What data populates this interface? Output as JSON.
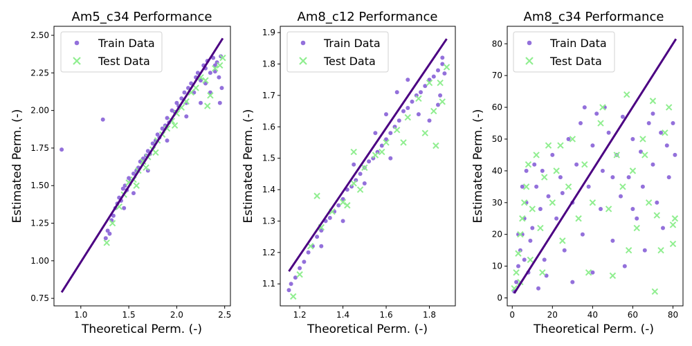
{
  "colors": {
    "train": "#9370DB",
    "test": "#90EE90",
    "fit_line": "#4B0082",
    "axes": "#000000",
    "legend_border": "#CCCCCC"
  },
  "legend": {
    "train_label": "Train Data",
    "test_label": "Test Data",
    "placement": "upper-left"
  },
  "chart_data": [
    {
      "type": "scatter",
      "title": "Am5_c34 Performance",
      "xlabel": "Theoretical Perm. (-)",
      "ylabel": "Estimated Perm. (-)",
      "xlim": [
        0.72,
        2.56
      ],
      "ylim": [
        0.7,
        2.56
      ],
      "xticks": [
        1.0,
        1.5,
        2.0,
        2.5
      ],
      "xtick_labels": [
        "1.0",
        "1.5",
        "2.0",
        "2.5"
      ],
      "yticks": [
        0.75,
        1.0,
        1.25,
        1.5,
        1.75,
        2.0,
        2.25,
        2.5
      ],
      "ytick_labels": [
        "0.75",
        "1.00",
        "1.25",
        "1.50",
        "1.75",
        "2.00",
        "2.25",
        "2.50"
      ],
      "fit_line": {
        "x": [
          0.8,
          2.48
        ],
        "y": [
          0.79,
          2.48
        ]
      },
      "train": [
        [
          0.8,
          1.74
        ],
        [
          1.23,
          1.94
        ],
        [
          1.26,
          1.15
        ],
        [
          1.28,
          1.2
        ],
        [
          1.3,
          1.18
        ],
        [
          1.32,
          1.27
        ],
        [
          1.34,
          1.3
        ],
        [
          1.36,
          1.35
        ],
        [
          1.38,
          1.38
        ],
        [
          1.4,
          1.42
        ],
        [
          1.42,
          1.4
        ],
        [
          1.44,
          1.48
        ],
        [
          1.46,
          1.5
        ],
        [
          1.48,
          1.47
        ],
        [
          1.5,
          1.55
        ],
        [
          1.52,
          1.53
        ],
        [
          1.55,
          1.58
        ],
        [
          1.58,
          1.6
        ],
        [
          1.6,
          1.62
        ],
        [
          1.62,
          1.66
        ],
        [
          1.65,
          1.68
        ],
        [
          1.68,
          1.7
        ],
        [
          1.7,
          1.73
        ],
        [
          1.72,
          1.71
        ],
        [
          1.75,
          1.78
        ],
        [
          1.78,
          1.8
        ],
        [
          1.8,
          1.84
        ],
        [
          1.82,
          1.82
        ],
        [
          1.85,
          1.88
        ],
        [
          1.88,
          1.9
        ],
        [
          1.9,
          1.95
        ],
        [
          1.92,
          1.92
        ],
        [
          1.95,
          2.0
        ],
        [
          1.98,
          1.99
        ],
        [
          2.0,
          2.05
        ],
        [
          2.02,
          2.03
        ],
        [
          2.05,
          2.08
        ],
        [
          2.08,
          2.12
        ],
        [
          2.1,
          2.05
        ],
        [
          2.12,
          2.15
        ],
        [
          2.15,
          2.18
        ],
        [
          2.18,
          2.12
        ],
        [
          2.2,
          2.22
        ],
        [
          2.22,
          2.25
        ],
        [
          2.25,
          2.2
        ],
        [
          2.28,
          2.3
        ],
        [
          2.3,
          2.28
        ],
        [
          2.32,
          2.33
        ],
        [
          2.35,
          2.25
        ],
        [
          2.38,
          2.35
        ],
        [
          2.4,
          2.3
        ],
        [
          2.42,
          2.32
        ],
        [
          2.44,
          2.22
        ],
        [
          2.46,
          2.36
        ],
        [
          2.47,
          2.15
        ],
        [
          1.7,
          1.6
        ],
        [
          1.9,
          1.8
        ],
        [
          2.1,
          1.96
        ],
        [
          2.25,
          2.05
        ],
        [
          2.35,
          2.12
        ],
        [
          1.55,
          1.45
        ],
        [
          1.45,
          1.35
        ],
        [
          2.3,
          2.18
        ],
        [
          2.4,
          2.26
        ],
        [
          2.45,
          2.05
        ]
      ],
      "test": [
        [
          1.27,
          1.12
        ],
        [
          1.33,
          1.25
        ],
        [
          1.4,
          1.36
        ],
        [
          1.45,
          1.44
        ],
        [
          1.5,
          1.52
        ],
        [
          1.55,
          1.54
        ],
        [
          1.6,
          1.6
        ],
        [
          1.65,
          1.66
        ],
        [
          1.7,
          1.69
        ],
        [
          1.75,
          1.74
        ],
        [
          1.8,
          1.8
        ],
        [
          1.85,
          1.84
        ],
        [
          1.9,
          1.88
        ],
        [
          1.95,
          1.93
        ],
        [
          2.0,
          1.98
        ],
        [
          2.05,
          2.02
        ],
        [
          2.1,
          2.06
        ],
        [
          2.15,
          2.12
        ],
        [
          2.2,
          2.15
        ],
        [
          2.25,
          2.22
        ],
        [
          2.3,
          2.2
        ],
        [
          2.35,
          2.1
        ],
        [
          2.4,
          2.28
        ],
        [
          2.45,
          2.3
        ],
        [
          2.48,
          2.35
        ],
        [
          2.32,
          2.03
        ],
        [
          1.58,
          1.5
        ],
        [
          1.68,
          1.62
        ],
        [
          1.78,
          1.72
        ],
        [
          1.98,
          1.9
        ]
      ]
    },
    {
      "type": "scatter",
      "title": "Am8_c12 Performance",
      "xlabel": "Theoretical Perm. (-)",
      "ylabel": "Estimated Perm. (-)",
      "xlim": [
        1.11,
        1.92
      ],
      "ylim": [
        1.03,
        1.92
      ],
      "xticks": [
        1.2,
        1.4,
        1.6,
        1.8
      ],
      "xtick_labels": [
        "1.2",
        "1.4",
        "1.6",
        "1.8"
      ],
      "yticks": [
        1.1,
        1.2,
        1.3,
        1.4,
        1.5,
        1.6,
        1.7,
        1.8,
        1.9
      ],
      "ytick_labels": [
        "1.1",
        "1.2",
        "1.3",
        "1.4",
        "1.5",
        "1.6",
        "1.7",
        "1.8",
        "1.9"
      ],
      "fit_line": {
        "x": [
          1.15,
          1.88
        ],
        "y": [
          1.14,
          1.88
        ]
      },
      "train": [
        [
          1.15,
          1.08
        ],
        [
          1.16,
          1.1
        ],
        [
          1.18,
          1.12
        ],
        [
          1.2,
          1.15
        ],
        [
          1.22,
          1.17
        ],
        [
          1.24,
          1.2
        ],
        [
          1.26,
          1.22
        ],
        [
          1.28,
          1.25
        ],
        [
          1.3,
          1.27
        ],
        [
          1.32,
          1.3
        ],
        [
          1.34,
          1.31
        ],
        [
          1.36,
          1.33
        ],
        [
          1.38,
          1.35
        ],
        [
          1.4,
          1.37
        ],
        [
          1.42,
          1.4
        ],
        [
          1.44,
          1.41
        ],
        [
          1.46,
          1.43
        ],
        [
          1.48,
          1.45
        ],
        [
          1.5,
          1.47
        ],
        [
          1.52,
          1.49
        ],
        [
          1.54,
          1.5
        ],
        [
          1.56,
          1.52
        ],
        [
          1.58,
          1.54
        ],
        [
          1.6,
          1.56
        ],
        [
          1.62,
          1.58
        ],
        [
          1.64,
          1.6
        ],
        [
          1.66,
          1.62
        ],
        [
          1.68,
          1.65
        ],
        [
          1.7,
          1.66
        ],
        [
          1.72,
          1.68
        ],
        [
          1.74,
          1.7
        ],
        [
          1.76,
          1.71
        ],
        [
          1.78,
          1.73
        ],
        [
          1.8,
          1.75
        ],
        [
          1.82,
          1.76
        ],
        [
          1.84,
          1.78
        ],
        [
          1.86,
          1.8
        ],
        [
          1.87,
          1.77
        ],
        [
          1.65,
          1.71
        ],
        [
          1.7,
          1.75
        ],
        [
          1.6,
          1.64
        ],
        [
          1.55,
          1.58
        ],
        [
          1.45,
          1.48
        ],
        [
          1.5,
          1.42
        ],
        [
          1.85,
          1.7
        ],
        [
          1.8,
          1.62
        ],
        [
          1.75,
          1.64
        ],
        [
          1.62,
          1.5
        ],
        [
          1.4,
          1.3
        ],
        [
          1.3,
          1.22
        ],
        [
          1.86,
          1.82
        ],
        [
          1.84,
          1.67
        ]
      ],
      "test": [
        [
          1.17,
          1.06
        ],
        [
          1.2,
          1.13
        ],
        [
          1.25,
          1.22
        ],
        [
          1.3,
          1.28
        ],
        [
          1.35,
          1.33
        ],
        [
          1.4,
          1.36
        ],
        [
          1.45,
          1.42
        ],
        [
          1.5,
          1.47
        ],
        [
          1.55,
          1.51
        ],
        [
          1.6,
          1.55
        ],
        [
          1.65,
          1.59
        ],
        [
          1.7,
          1.63
        ],
        [
          1.75,
          1.69
        ],
        [
          1.8,
          1.74
        ],
        [
          1.85,
          1.74
        ],
        [
          1.88,
          1.79
        ],
        [
          1.83,
          1.54
        ],
        [
          1.78,
          1.58
        ],
        [
          1.68,
          1.55
        ],
        [
          1.58,
          1.52
        ],
        [
          1.48,
          1.4
        ],
        [
          1.42,
          1.35
        ],
        [
          1.28,
          1.38
        ],
        [
          1.45,
          1.52
        ],
        [
          1.86,
          1.68
        ],
        [
          1.82,
          1.65
        ]
      ]
    },
    {
      "type": "scatter",
      "title": "Am8_c34 Performance",
      "xlabel": "Theoretical Perm. (-)",
      "ylabel": "Estimated Perm. (-)",
      "xlim": [
        -2.5,
        85
      ],
      "ylim": [
        -2.5,
        85.5
      ],
      "xticks": [
        0,
        20,
        40,
        60,
        80
      ],
      "xtick_labels": [
        "0",
        "20",
        "40",
        "60",
        "80"
      ],
      "yticks": [
        0,
        10,
        20,
        30,
        40,
        50,
        60,
        70,
        80
      ],
      "ytick_labels": [
        "0",
        "10",
        "20",
        "30",
        "40",
        "50",
        "60",
        "70",
        "80"
      ],
      "fit_line": {
        "x": [
          1,
          81.5
        ],
        "y": [
          1.5,
          81.5
        ]
      },
      "train": [
        [
          2,
          5
        ],
        [
          3,
          10
        ],
        [
          4,
          15
        ],
        [
          5,
          20
        ],
        [
          6,
          25
        ],
        [
          7,
          30
        ],
        [
          8,
          8
        ],
        [
          9,
          18
        ],
        [
          10,
          22
        ],
        [
          12,
          35
        ],
        [
          14,
          28
        ],
        [
          15,
          40
        ],
        [
          16,
          12
        ],
        [
          18,
          32
        ],
        [
          20,
          45
        ],
        [
          22,
          25
        ],
        [
          24,
          38
        ],
        [
          26,
          15
        ],
        [
          28,
          50
        ],
        [
          30,
          30
        ],
        [
          32,
          42
        ],
        [
          34,
          55
        ],
        [
          35,
          20
        ],
        [
          38,
          35
        ],
        [
          40,
          48
        ],
        [
          42,
          58
        ],
        [
          44,
          28
        ],
        [
          45,
          40
        ],
        [
          48,
          52
        ],
        [
          50,
          18
        ],
        [
          52,
          45
        ],
        [
          54,
          32
        ],
        [
          55,
          57
        ],
        [
          58,
          38
        ],
        [
          60,
          50
        ],
        [
          62,
          25
        ],
        [
          64,
          46
        ],
        [
          65,
          35
        ],
        [
          68,
          55
        ],
        [
          70,
          42
        ],
        [
          72,
          30
        ],
        [
          74,
          52
        ],
        [
          75,
          22
        ],
        [
          77,
          48
        ],
        [
          78,
          38
        ],
        [
          80,
          55
        ],
        [
          81,
          45
        ],
        [
          36,
          60
        ],
        [
          46,
          60
        ],
        [
          66,
          15
        ],
        [
          56,
          10
        ],
        [
          40,
          8
        ],
        [
          30,
          5
        ],
        [
          70,
          58
        ],
        [
          60,
          28
        ],
        [
          50,
          38
        ],
        [
          25,
          33
        ],
        [
          17,
          7
        ],
        [
          13,
          3
        ],
        [
          1,
          2
        ],
        [
          3,
          20
        ],
        [
          5,
          35
        ],
        [
          7,
          40
        ],
        [
          11,
          42
        ],
        [
          6,
          12
        ]
      ],
      "test": [
        [
          1,
          3
        ],
        [
          2,
          8
        ],
        [
          3,
          14
        ],
        [
          4,
          20
        ],
        [
          5,
          25
        ],
        [
          6,
          30
        ],
        [
          7,
          35
        ],
        [
          8,
          42
        ],
        [
          9,
          12
        ],
        [
          10,
          28
        ],
        [
          12,
          45
        ],
        [
          14,
          22
        ],
        [
          16,
          38
        ],
        [
          18,
          48
        ],
        [
          20,
          30
        ],
        [
          22,
          40
        ],
        [
          25,
          18
        ],
        [
          28,
          35
        ],
        [
          30,
          50
        ],
        [
          33,
          25
        ],
        [
          36,
          42
        ],
        [
          40,
          30
        ],
        [
          44,
          55
        ],
        [
          48,
          28
        ],
        [
          50,
          7
        ],
        [
          52,
          45
        ],
        [
          55,
          35
        ],
        [
          57,
          64
        ],
        [
          60,
          40
        ],
        [
          62,
          22
        ],
        [
          65,
          50
        ],
        [
          68,
          30
        ],
        [
          70,
          62
        ],
        [
          71,
          2
        ],
        [
          72,
          26
        ],
        [
          74,
          15
        ],
        [
          76,
          52
        ],
        [
          78,
          60
        ],
        [
          80,
          23
        ],
        [
          81,
          25
        ],
        [
          80,
          17
        ],
        [
          38,
          8
        ],
        [
          58,
          15
        ],
        [
          66,
          45
        ],
        [
          45,
          60
        ],
        [
          24,
          48
        ],
        [
          15,
          8
        ],
        [
          4,
          5
        ]
      ]
    }
  ]
}
